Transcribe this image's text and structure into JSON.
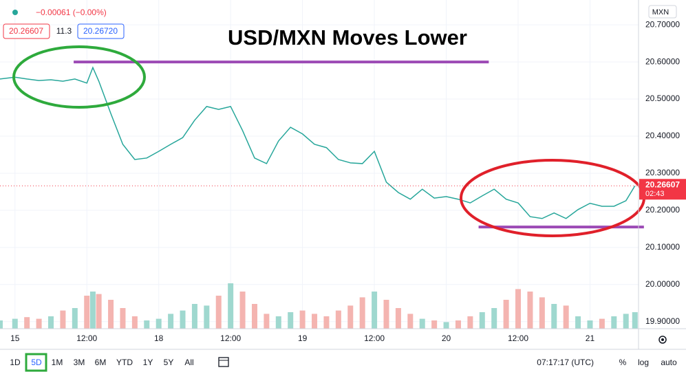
{
  "header": {
    "change": "−0.00061 (−0.00%)",
    "bid": "20.26607",
    "spread": "11.3",
    "ask": "20.26720",
    "currency": "MXN"
  },
  "chart_data": {
    "type": "line",
    "title": "USD/MXN Moves Lower",
    "x": [
      -2.5,
      0,
      2,
      4,
      6,
      8,
      10,
      12,
      13,
      14,
      16,
      18,
      20,
      22,
      24,
      26,
      28,
      30,
      32,
      34,
      36,
      38,
      40,
      42,
      44,
      46,
      48,
      50,
      52,
      54,
      56,
      58,
      60,
      62,
      64,
      66,
      68,
      70,
      72,
      74,
      76,
      78,
      80,
      82,
      84,
      86,
      88,
      90,
      92,
      94,
      96,
      98,
      100,
      102,
      103.5
    ],
    "series": [
      {
        "color": "#26a69a",
        "values": [
          20.554,
          20.559,
          20.554,
          20.55,
          20.552,
          20.548,
          20.554,
          20.543,
          20.585,
          20.548,
          20.461,
          20.378,
          20.337,
          20.341,
          20.359,
          20.378,
          20.396,
          20.443,
          20.48,
          20.472,
          20.48,
          20.415,
          20.341,
          20.326,
          20.387,
          20.424,
          20.406,
          20.378,
          20.369,
          20.337,
          20.328,
          20.326,
          20.359,
          20.276,
          20.248,
          20.23,
          20.257,
          20.233,
          20.237,
          20.23,
          20.22,
          20.239,
          20.257,
          20.23,
          20.22,
          20.183,
          20.178,
          20.193,
          20.178,
          20.202,
          20.219,
          20.211,
          20.211,
          20.226,
          20.266
        ]
      }
    ],
    "volume": {
      "up_color": "#9fd8cf",
      "down_color": "#f4b4b0",
      "ylim": [
        0,
        100
      ],
      "values": [
        10,
        12,
        14,
        12,
        15,
        22,
        25,
        40,
        45,
        42,
        35,
        25,
        15,
        10,
        12,
        18,
        22,
        30,
        28,
        40,
        55,
        45,
        30,
        18,
        15,
        20,
        22,
        18,
        15,
        22,
        28,
        38,
        45,
        35,
        25,
        18,
        12,
        10,
        8,
        10,
        15,
        20,
        25,
        35,
        48,
        45,
        38,
        30,
        28,
        15,
        10,
        12,
        15,
        18,
        20
      ]
    },
    "xlim": [
      -2.5,
      104.1
    ],
    "xticks": [
      {
        "value": 0,
        "label": "15"
      },
      {
        "value": 12,
        "label": "12:00"
      },
      {
        "value": 24,
        "label": "18"
      },
      {
        "value": 36,
        "label": "12:00"
      },
      {
        "value": 48,
        "label": "19"
      },
      {
        "value": 60,
        "label": "12:00"
      },
      {
        "value": 72,
        "label": "20"
      },
      {
        "value": 84,
        "label": "12:00"
      },
      {
        "value": 96,
        "label": "21"
      }
    ],
    "ylim": [
      19.881,
      20.767
    ],
    "yticks": [
      {
        "value": 20.7,
        "label": "20.70000"
      },
      {
        "value": 20.6,
        "label": "20.60000"
      },
      {
        "value": 20.5,
        "label": "20.50000"
      },
      {
        "value": 20.4,
        "label": "20.40000"
      },
      {
        "value": 20.3,
        "label": "20.30000"
      },
      {
        "value": 20.2,
        "label": "20.20000"
      },
      {
        "value": 20.1,
        "label": "20.10000"
      },
      {
        "value": 20.0,
        "label": "20.00000"
      },
      {
        "value": 19.9,
        "label": "19.90000"
      }
    ],
    "grid": true,
    "last_price": {
      "value": 20.26607,
      "label": "20.26607",
      "countdown": "02:43",
      "color": "#f23645"
    },
    "levels": [
      {
        "value": 20.6,
        "x": [
          9.8,
          79.1
        ]
      },
      {
        "value": 20.155,
        "x": [
          77.4,
          105
        ]
      }
    ],
    "level_color": "#9c4ab5"
  },
  "range_bar": {
    "periods": [
      "1D",
      "5D",
      "1M",
      "3M",
      "6M",
      "YTD",
      "1Y",
      "5Y",
      "All"
    ],
    "active": 1,
    "time": "07:17:17 (UTC)",
    "options": [
      "%",
      "log",
      "auto"
    ]
  }
}
